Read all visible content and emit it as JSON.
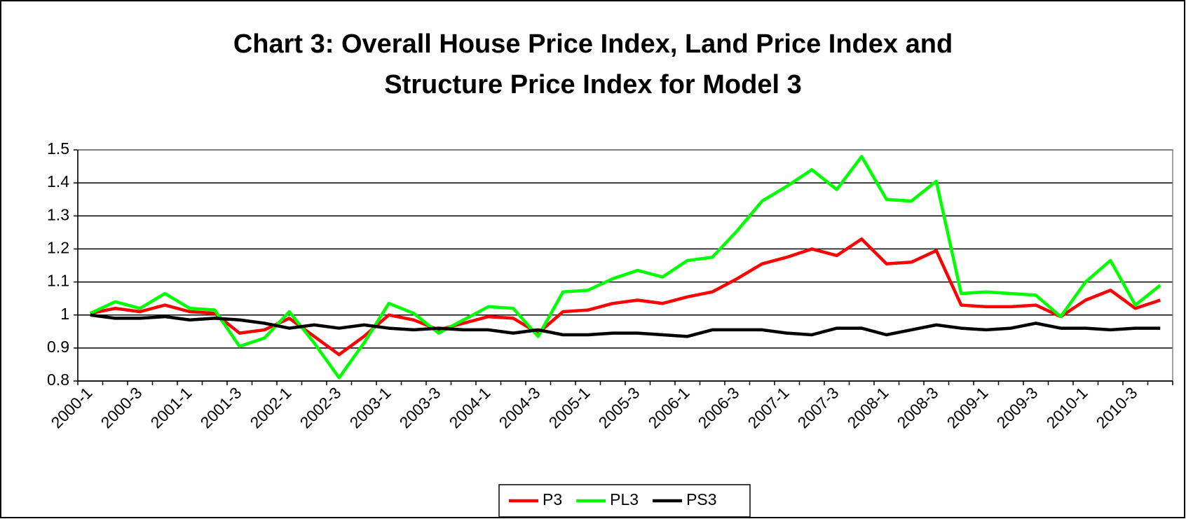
{
  "chart_data": {
    "type": "line",
    "title": "Chart 3: Overall House Price Index, Land Price Index and Structure Price Index for Model 3",
    "categories": [
      "2000-1",
      null,
      "2000-3",
      null,
      "2001-1",
      null,
      "2001-3",
      null,
      "2002-1",
      null,
      "2002-3",
      null,
      "2003-1",
      null,
      "2003-3",
      null,
      "2004-1",
      null,
      "2004-3",
      null,
      "2005-1",
      null,
      "2005-3",
      null,
      "2006-1",
      null,
      "2006-3",
      null,
      "2007-1",
      null,
      "2007-3",
      null,
      "2008-1",
      null,
      "2008-3",
      null,
      "2009-1",
      null,
      "2009-3",
      null,
      "2010-1",
      null,
      "2010-3",
      null
    ],
    "series": [
      {
        "name": "P3",
        "color": "#ff0000",
        "values": [
          1.005,
          1.02,
          1.01,
          1.03,
          1.01,
          1.005,
          0.945,
          0.955,
          0.99,
          0.935,
          0.88,
          0.935,
          1.0,
          0.985,
          0.955,
          0.975,
          0.995,
          0.99,
          0.945,
          1.01,
          1.015,
          1.035,
          1.045,
          1.035,
          1.055,
          1.07,
          1.11,
          1.155,
          1.175,
          1.2,
          1.18,
          1.23,
          1.155,
          1.16,
          1.195,
          1.03,
          1.025,
          1.025,
          1.03,
          0.995,
          1.045,
          1.075,
          1.02,
          1.045
        ]
      },
      {
        "name": "PL3",
        "color": "#00ff00",
        "values": [
          1.005,
          1.04,
          1.02,
          1.065,
          1.02,
          1.015,
          0.905,
          0.93,
          1.01,
          0.915,
          0.81,
          0.915,
          1.035,
          1.005,
          0.945,
          0.985,
          1.025,
          1.02,
          0.935,
          1.07,
          1.075,
          1.11,
          1.135,
          1.115,
          1.165,
          1.175,
          1.255,
          1.345,
          1.39,
          1.44,
          1.38,
          1.48,
          1.35,
          1.345,
          1.405,
          1.065,
          1.07,
          1.065,
          1.06,
          0.995,
          1.1,
          1.165,
          1.03,
          1.09
        ]
      },
      {
        "name": "PS3",
        "color": "#000000",
        "values": [
          1.0,
          0.99,
          0.99,
          0.995,
          0.985,
          0.99,
          0.985,
          0.975,
          0.96,
          0.97,
          0.96,
          0.97,
          0.96,
          0.955,
          0.96,
          0.955,
          0.955,
          0.945,
          0.955,
          0.94,
          0.94,
          0.945,
          0.945,
          0.94,
          0.935,
          0.955,
          0.955,
          0.955,
          0.945,
          0.94,
          0.96,
          0.96,
          0.94,
          0.955,
          0.97,
          0.96,
          0.955,
          0.96,
          0.975,
          0.96,
          0.96,
          0.955,
          0.96,
          0.96
        ]
      }
    ],
    "ylim": [
      0.8,
      1.5
    ],
    "yticks": [
      0.8,
      0.9,
      1,
      1.1,
      1.2,
      1.3,
      1.4,
      1.5
    ],
    "grid": true,
    "legend": "bottom"
  }
}
